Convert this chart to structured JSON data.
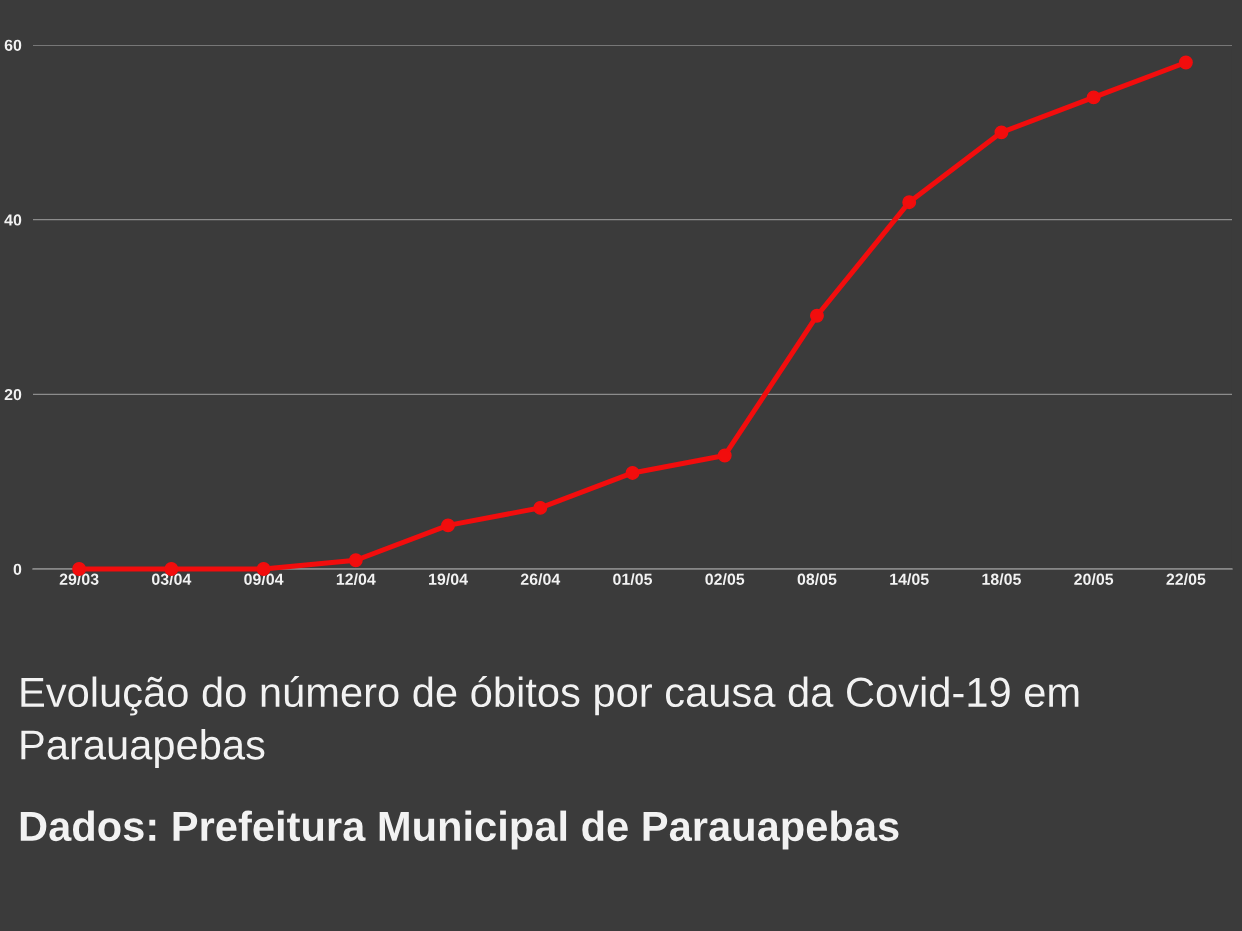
{
  "chart_data": {
    "type": "line",
    "title": "Evolução do número de óbitos por causa da Covid-19 em Parauapebas",
    "annotations": [
      "Dados: Prefeitura Municipal de Parauapebas"
    ],
    "categories": [
      "29/03",
      "03/04",
      "09/04",
      "12/04",
      "19/04",
      "26/04",
      "01/05",
      "02/05",
      "08/05",
      "14/05",
      "18/05",
      "20/05",
      "22/05"
    ],
    "series": [
      {
        "color": "#f20d0d",
        "values": [
          0,
          0,
          0,
          1,
          5,
          7,
          11,
          13,
          29,
          42,
          50,
          54,
          58
        ]
      }
    ],
    "ylim": [
      0,
      60
    ],
    "yticks": [
      0,
      20,
      40,
      60
    ],
    "grid": "y",
    "marker": "circle",
    "line_style": "solid"
  }
}
